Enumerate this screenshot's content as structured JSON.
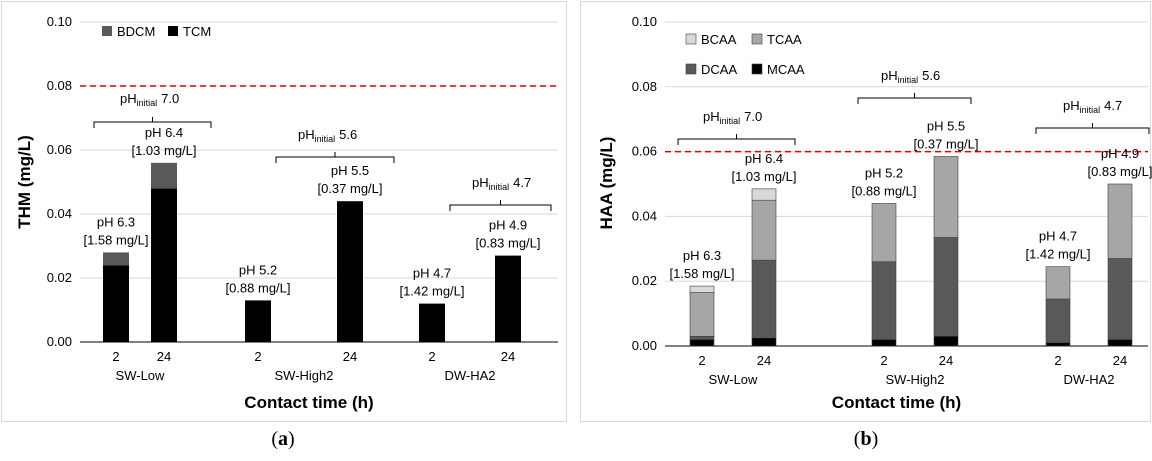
{
  "colors": {
    "BDCM": "#595959",
    "TCM": "#000000",
    "BCAA": "#d9d9d9",
    "TCAA": "#a6a6a6",
    "DCAA": "#595959",
    "MCAA": "#000000",
    "limit_line": "#e00000"
  },
  "chart_data": [
    {
      "type": "bar",
      "stacked": true,
      "panel_label": "(a)",
      "panel_label_letter": "a",
      "ylabel": "THM (mg/L)",
      "xlabel": "Contact time (h)",
      "ylim": [
        0,
        0.1
      ],
      "yticks": [
        "0.00",
        "0.02",
        "0.04",
        "0.06",
        "0.08",
        "0.10"
      ],
      "legend_position": "top-left",
      "limit_line": 0.08,
      "groups": [
        {
          "name": "SW-Low",
          "times": [
            "2",
            "24"
          ],
          "phinitial": "7.0",
          "bar_labels": [
            {
              "ph": "pH 6.3",
              "conc": "[1.58 mg/L]"
            },
            {
              "ph": "pH 6.4",
              "conc": "[1.03 mg/L]"
            }
          ]
        },
        {
          "name": "SW-High2",
          "times": [
            "2",
            "24"
          ],
          "phinitial": "5.6",
          "bar_labels": [
            {
              "ph": "pH 5.2",
              "conc": "[0.88 mg/L]"
            },
            {
              "ph": "pH 5.5",
              "conc": "[0.37 mg/L]"
            }
          ]
        },
        {
          "name": "DW-HA2",
          "times": [
            "2",
            "24"
          ],
          "phinitial": "4.7",
          "bar_labels": [
            {
              "ph": "pH 4.7",
              "conc": "[1.42 mg/L]"
            },
            {
              "ph": "pH 4.9",
              "conc": "[0.83 mg/L]"
            }
          ]
        }
      ],
      "series": [
        {
          "name": "TCM",
          "values": [
            0.024,
            0.048,
            0.013,
            0.044,
            0.012,
            0.027
          ]
        },
        {
          "name": "BDCM",
          "values": [
            0.004,
            0.008,
            0.0,
            0.0,
            0.0,
            0.0
          ]
        }
      ],
      "legend_order": [
        "BDCM",
        "TCM"
      ]
    },
    {
      "type": "bar",
      "stacked": true,
      "panel_label": "(b)",
      "panel_label_letter": "b",
      "ylabel": "HAA (mg/L)",
      "xlabel": "Contact time (h)",
      "ylim": [
        0,
        0.1
      ],
      "yticks": [
        "0.00",
        "0.02",
        "0.04",
        "0.06",
        "0.08",
        "0.10"
      ],
      "legend_position": "top-left",
      "limit_line": 0.06,
      "groups": [
        {
          "name": "SW-Low",
          "times": [
            "2",
            "24"
          ],
          "phinitial": "7.0",
          "bar_labels": [
            {
              "ph": "pH 6.3",
              "conc": "[1.58 mg/L]"
            },
            {
              "ph": "pH 6.4",
              "conc": "[1.03 mg/L]"
            }
          ]
        },
        {
          "name": "SW-High2",
          "times": [
            "2",
            "24"
          ],
          "phinitial": "5.6",
          "bar_labels": [
            {
              "ph": "pH 5.2",
              "conc": "[0.88 mg/L]"
            },
            {
              "ph": "pH 5.5",
              "conc": "[0.37 mg/L]"
            }
          ]
        },
        {
          "name": "DW-HA2",
          "times": [
            "2",
            "24"
          ],
          "phinitial": "4.7",
          "bar_labels": [
            {
              "ph": "pH 4.7",
              "conc": "[1.42 mg/L]"
            },
            {
              "ph": "pH 4.9",
              "conc": "[0.83 mg/L]"
            }
          ]
        }
      ],
      "series": [
        {
          "name": "MCAA",
          "values": [
            0.002,
            0.0025,
            0.002,
            0.003,
            0.001,
            0.002
          ]
        },
        {
          "name": "DCAA",
          "values": [
            0.001,
            0.024,
            0.024,
            0.0305,
            0.0135,
            0.025
          ]
        },
        {
          "name": "TCAA",
          "values": [
            0.0135,
            0.0185,
            0.018,
            0.025,
            0.01,
            0.023
          ]
        },
        {
          "name": "BCAA",
          "values": [
            0.002,
            0.0035,
            0.0,
            0.0,
            0.0,
            0.0
          ]
        }
      ],
      "legend_order": [
        "BCAA",
        "TCAA",
        "DCAA",
        "MCAA"
      ]
    }
  ],
  "annotation_prefix": "pH",
  "annotation_sub": "initial"
}
